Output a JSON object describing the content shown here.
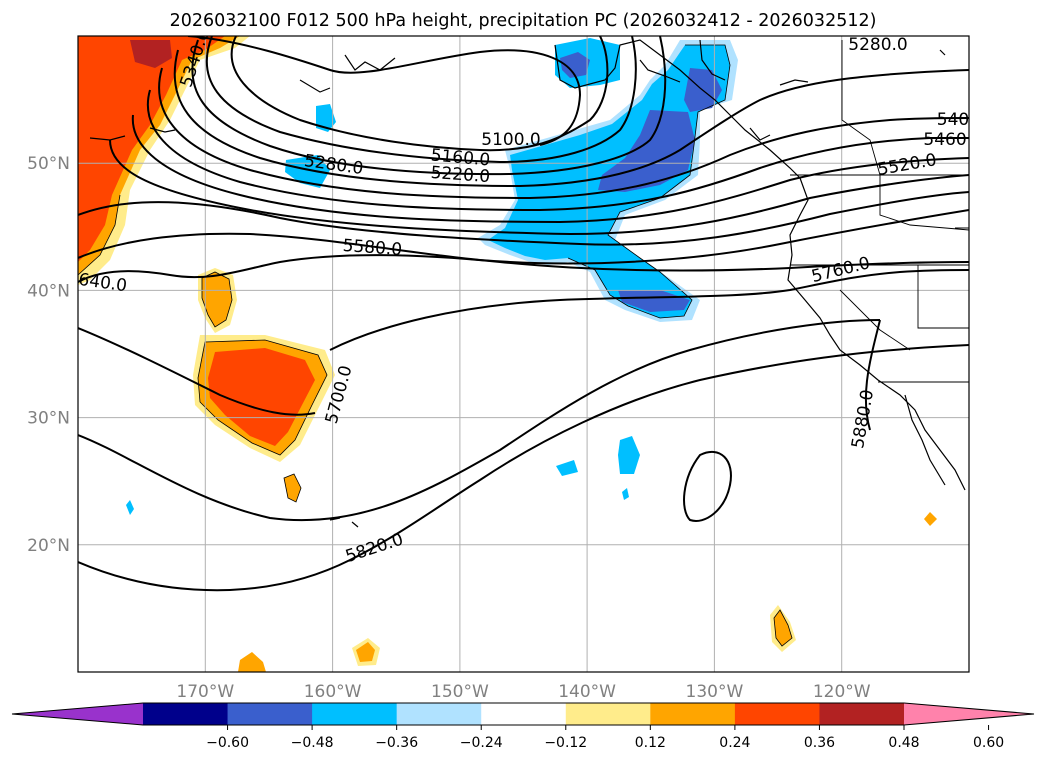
{
  "chart_data": {
    "type": "heatmap",
    "title": "2026032100 F012 500 hPa height, precipitation PC (2026032412 - 2026032512)",
    "map": {
      "lon_range": [
        -180,
        -110
      ],
      "lat_range": [
        10,
        60
      ],
      "lon_ticks": [
        {
          "lon": -170,
          "label": "170°W"
        },
        {
          "lon": -160,
          "label": "160°W"
        },
        {
          "lon": -150,
          "label": "150°W"
        },
        {
          "lon": -140,
          "label": "140°W"
        },
        {
          "lon": -130,
          "label": "130°W"
        },
        {
          "lon": -120,
          "label": "120°W"
        }
      ],
      "lat_ticks": [
        {
          "lat": 20,
          "label": "20°N"
        },
        {
          "lat": 30,
          "label": "30°N"
        },
        {
          "lat": 40,
          "label": "40°N"
        },
        {
          "lat": 50,
          "label": "50°N"
        }
      ],
      "grid": true
    },
    "colorbar": {
      "extend": "both",
      "boundaries": [
        -0.72,
        -0.6,
        -0.48,
        -0.36,
        -0.24,
        -0.12,
        0.12,
        0.24,
        0.36,
        0.48,
        0.6,
        0.72
      ],
      "colors": [
        "#9932cc",
        "#00008b",
        "#3a5fcd",
        "#00bfff",
        "#b0e2ff",
        "#ffffff",
        "#ffec8b",
        "#ffa500",
        "#ff4500",
        "#b22222",
        "#ff82ab"
      ],
      "tick_labels": [
        "−0.60",
        "−0.48",
        "−0.36",
        "−0.24",
        "−0.12",
        "0.12",
        "0.24",
        "0.36",
        "0.48",
        "0.60"
      ]
    },
    "contour_labels": [
      "5340.0",
      "5280.0",
      "5100.0",
      "5160.0",
      "5220.0",
      "5580.0",
      "640.0",
      "5700.0",
      "5820.0",
      "5280.0",
      "540",
      "5460",
      "5520.0",
      "5760.0",
      "5880.0"
    ],
    "contour_labels_rotation": [
      -72,
      8,
      0,
      5,
      4,
      4,
      8,
      -75,
      18,
      0,
      0,
      0,
      8,
      14,
      -80
    ]
  }
}
